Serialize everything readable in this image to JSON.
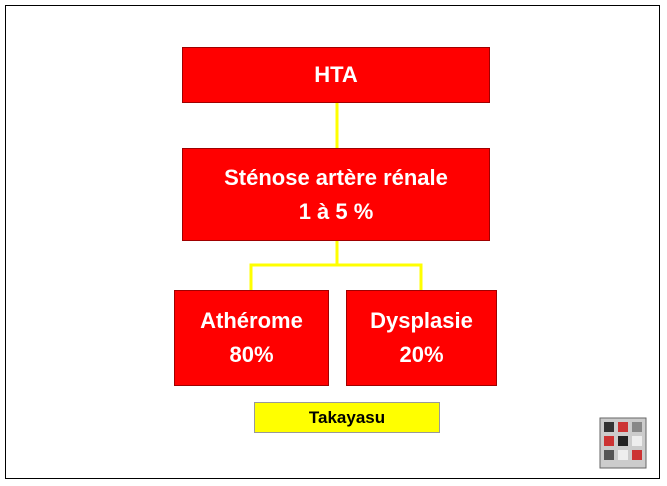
{
  "nodes": [
    {
      "lines": [
        "HTA"
      ]
    },
    {
      "lines": [
        "Sténose artère rénale",
        "1 à 5 %"
      ]
    },
    {
      "lines": [
        "Athérome",
        "80%"
      ]
    },
    {
      "lines": [
        "Dysplasie",
        "20%"
      ]
    }
  ],
  "note": "Takayasu"
}
